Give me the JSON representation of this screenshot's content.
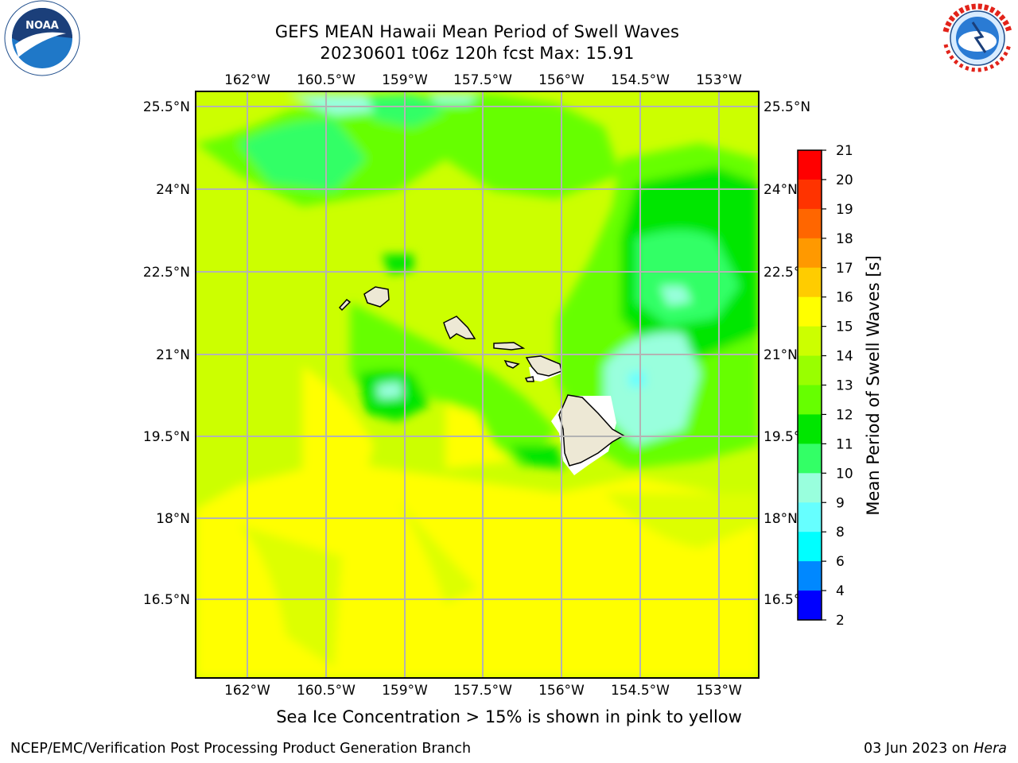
{
  "title_line1": "GEFS MEAN Hawaii Mean Period of Swell Waves",
  "title_line2": "20230601 t06z 120h fcst   Max: 15.91",
  "lon_labels": [
    "162°W",
    "160.5°W",
    "159°W",
    "157.5°W",
    "156°W",
    "154.5°W",
    "153°W"
  ],
  "lat_labels": [
    "25.5°N",
    "24°N",
    "22.5°N",
    "21°N",
    "19.5°N",
    "18°N",
    "16.5°N"
  ],
  "colorbar": {
    "label": "Mean Period of Swell Waves [s]",
    "ticks": [
      "21",
      "20",
      "19",
      "18",
      "17",
      "16",
      "15",
      "14",
      "13",
      "12",
      "11",
      "10",
      "9",
      "8",
      "6",
      "4",
      "2"
    ],
    "colors": [
      "#ff0000",
      "#ff3300",
      "#ff6600",
      "#ff9900",
      "#ffcc00",
      "#ffff00",
      "#ccff00",
      "#99ff00",
      "#66ff00",
      "#00e600",
      "#33ff66",
      "#99ffdd",
      "#66ffff",
      "#00ffff",
      "#0088ff",
      "#0000ff"
    ]
  },
  "caption": "Sea Ice Concentration > 15% is shown in pink to yellow",
  "footer_left": "NCEP/EMC/Verification Post Processing Product Generation Branch",
  "footer_right_prefix": "03 Jun 2023 on ",
  "footer_right_host": "Hera",
  "logos": {
    "left": "noaa-logo",
    "right": "nws-logo"
  }
}
